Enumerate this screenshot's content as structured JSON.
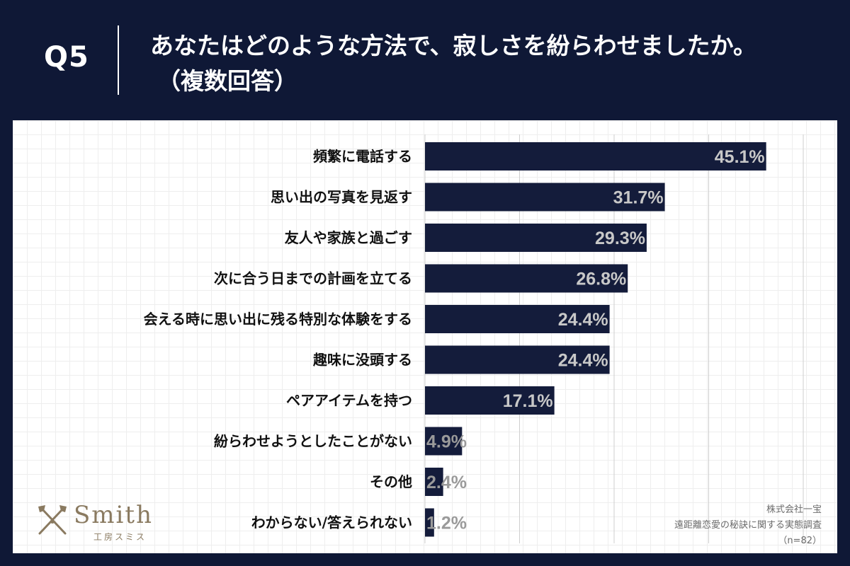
{
  "header": {
    "q_label": "Q5",
    "title_line1": "あなたはどのような方法で、寂しさを紛らわせましたか。",
    "title_line2": "（複数回答）"
  },
  "colors": {
    "background": "#0f1836",
    "bar": "#141c3b",
    "value_label": "#c8c8c8",
    "category_label": "#111111"
  },
  "chart_data": {
    "type": "bar",
    "orientation": "horizontal",
    "categories": [
      "頻繁に電話する",
      "思い出の写真を見返す",
      "友人や家族と過ごす",
      "次に合う日までの計画を立てる",
      "会える時に思い出に残る特別な体験をする",
      "趣味に没頭する",
      "ペアアイテムを持つ",
      "紛らわせようとしたことがない",
      "その他",
      "わからない/答えられない"
    ],
    "values": [
      45.1,
      31.7,
      29.3,
      26.8,
      24.4,
      24.4,
      17.1,
      4.9,
      2.4,
      1.2
    ],
    "value_labels": [
      "45.1%",
      "31.7%",
      "29.3%",
      "26.8%",
      "24.4%",
      "24.4%",
      "17.1%",
      "4.9%",
      "2.4%",
      "1.2%"
    ],
    "xlim": [
      0,
      50
    ],
    "grid_every": 12.5,
    "unit": "%"
  },
  "logo": {
    "name": "Smith",
    "subtitle": "工房スミス"
  },
  "source": {
    "company": "株式会社一宝",
    "survey": "遠距離恋愛の秘訣に関する実態調査",
    "sample": "（n=82）"
  }
}
